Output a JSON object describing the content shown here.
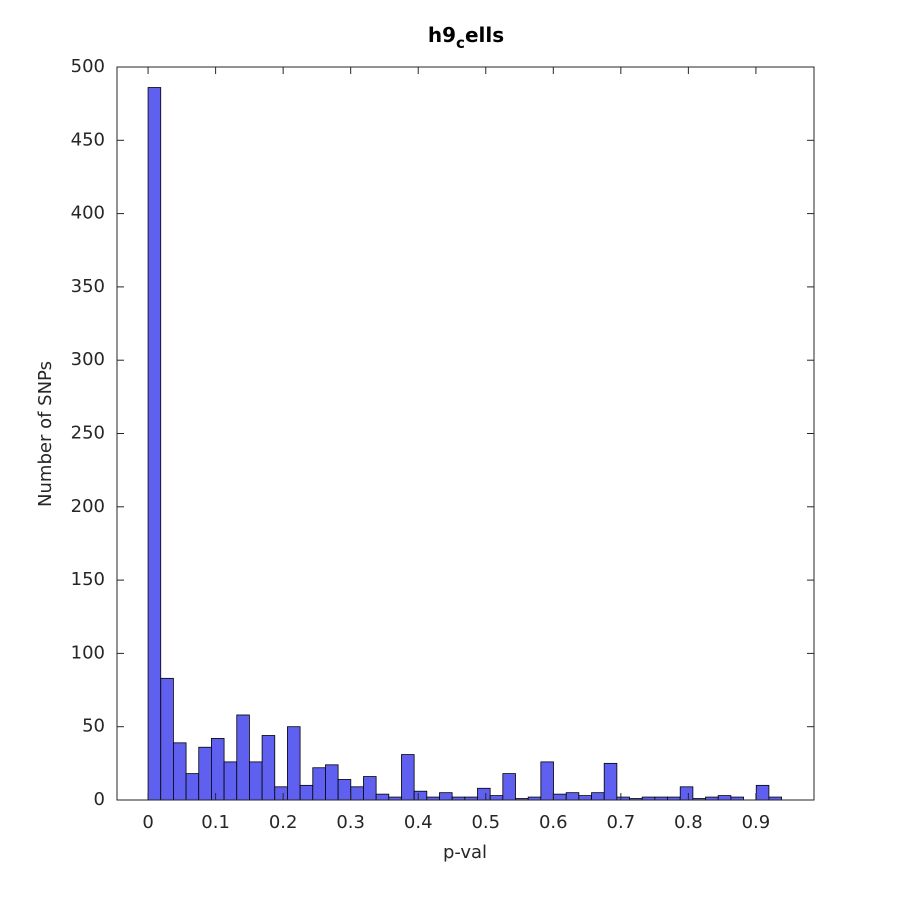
{
  "chart_data": {
    "type": "histogram",
    "title": "h9_cells",
    "xlabel": "p-val",
    "ylabel": "Number of SNPs",
    "bins": [
      0,
      0.01876,
      0.03752,
      0.05628,
      0.07504,
      0.0938,
      0.11256,
      0.13132,
      0.15008,
      0.16884,
      0.1876,
      0.20636,
      0.22512,
      0.24388,
      0.26264,
      0.2814,
      0.30016,
      0.31892,
      0.33768,
      0.35644,
      0.3752,
      0.39396,
      0.41272,
      0.43148,
      0.45024,
      0.469,
      0.48776,
      0.50652,
      0.52528,
      0.54404,
      0.5628,
      0.58156,
      0.60032,
      0.61908,
      0.63784,
      0.6566,
      0.67536,
      0.69412,
      0.71288,
      0.73164,
      0.7504,
      0.76916,
      0.78792,
      0.80668,
      0.82544,
      0.8442,
      0.86296,
      0.88172,
      0.90048,
      0.91924,
      0.938
    ],
    "values": [
      486,
      83,
      39,
      18,
      36,
      42,
      26,
      58,
      26,
      44,
      9,
      50,
      10,
      22,
      24,
      14,
      9,
      16,
      4,
      2,
      31,
      6,
      2,
      5,
      2,
      2,
      8,
      3,
      18,
      1,
      2,
      26,
      4,
      5,
      3,
      5,
      25,
      2,
      1,
      2,
      2,
      2,
      9,
      1,
      2,
      3,
      2,
      0,
      10,
      2
    ],
    "color": "#6060f0",
    "xlim": [
      -0.046,
      0.986
    ],
    "xticks": [
      0,
      0.1,
      0.2,
      0.3,
      0.4,
      0.5,
      0.6,
      0.7,
      0.8,
      0.9
    ],
    "ylim": [
      0,
      500
    ],
    "yticks": [
      0,
      50,
      100,
      150,
      200,
      250,
      300,
      350,
      400,
      450,
      500
    ],
    "grid": false
  }
}
